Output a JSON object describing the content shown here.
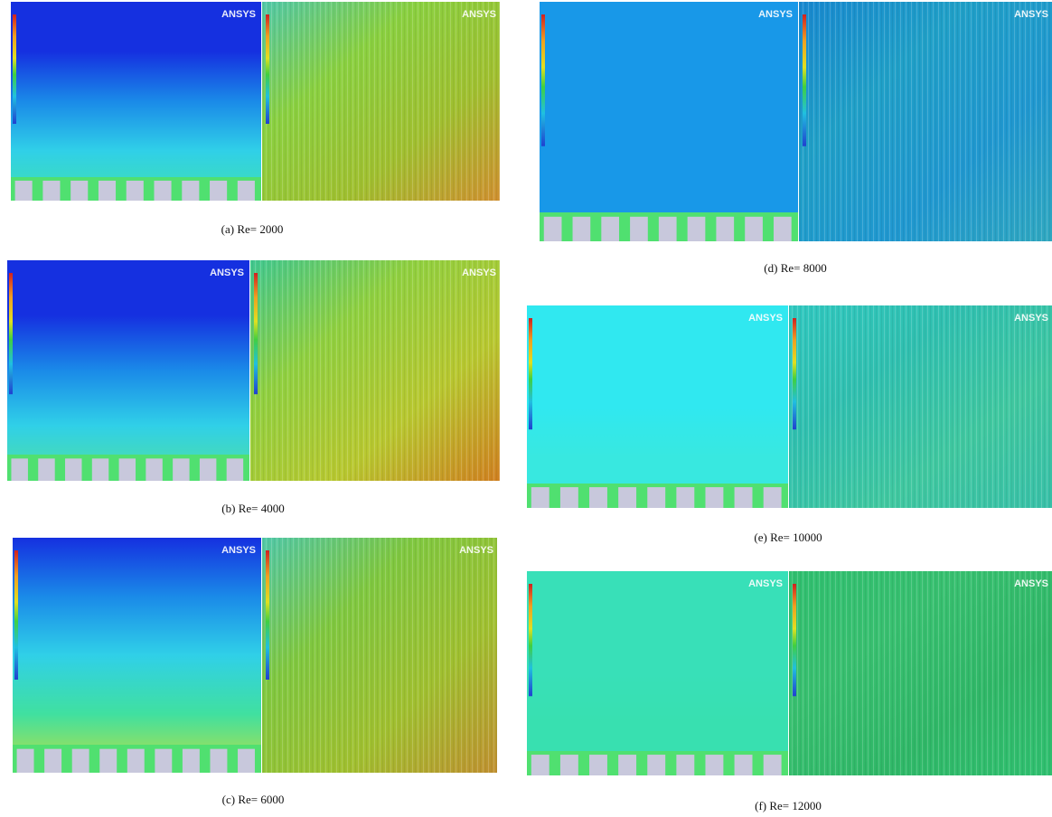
{
  "figure": {
    "panels": [
      {
        "caption": "(a) Re= 2000",
        "logo": "ANSYS"
      },
      {
        "caption": "(b) Re= 4000",
        "logo": "ANSYS"
      },
      {
        "caption": "(c) Re= 6000",
        "logo": "ANSYS"
      },
      {
        "caption": "(d) Re= 8000",
        "logo": "ANSYS"
      },
      {
        "caption": "(e) Re= 10000",
        "logo": "ANSYS"
      },
      {
        "caption": "(f) Re= 12000",
        "logo": "ANSYS"
      }
    ]
  }
}
